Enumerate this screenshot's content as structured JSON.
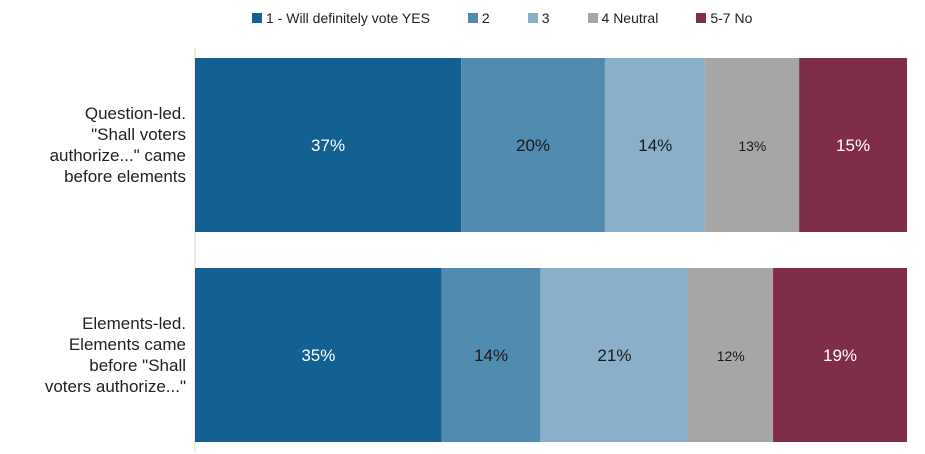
{
  "chart_data": {
    "type": "bar",
    "orientation": "horizontal",
    "stacked": true,
    "percent_stacked": true,
    "categories": [
      [
        "Question-led.",
        "\"Shall voters",
        "authorize...\" came",
        "before elements"
      ],
      [
        "Elements-led.",
        "Elements came",
        "before \"Shall",
        "voters authorize...\""
      ]
    ],
    "series": [
      {
        "name": "1 - Will definitely vote YES",
        "color": "#136092",
        "values": [
          37,
          35
        ],
        "labels": [
          "37%",
          "35%"
        ]
      },
      {
        "name": "2",
        "color": "#528bb0",
        "values": [
          20,
          14
        ],
        "labels": [
          "20%",
          "14%"
        ]
      },
      {
        "name": "3",
        "color": "#8ab0c9",
        "values": [
          14,
          21
        ],
        "labels": [
          "14%",
          "21%"
        ]
      },
      {
        "name": "4 Neutral",
        "color": "#a6a6a6",
        "values": [
          13,
          12
        ],
        "labels": [
          "13%",
          "12%"
        ]
      },
      {
        "name": "5-7 No",
        "color": "#7f2d4b",
        "values": [
          15,
          19
        ],
        "labels": [
          "15%",
          "19%"
        ]
      }
    ],
    "xlim": [
      0,
      100
    ],
    "legend_position": "top",
    "grid": false,
    "title": "",
    "xlabel": "",
    "ylabel": ""
  }
}
